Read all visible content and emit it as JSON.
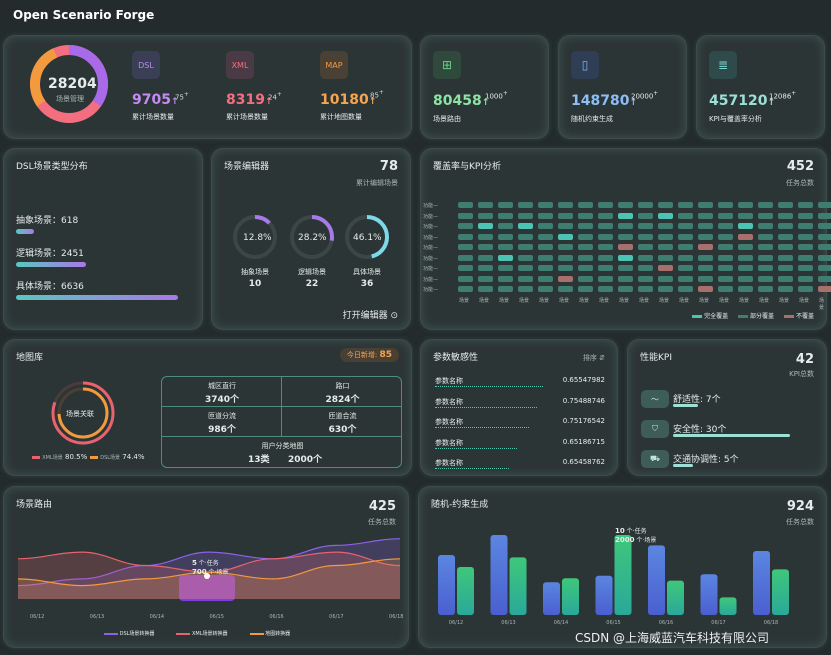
{
  "app": {
    "title": "Open Scenario Forge"
  },
  "scene_mgmt": {
    "total": "28204",
    "total_label": "场景管理",
    "items": [
      {
        "icon": "DSL",
        "value": "9705",
        "delta": "75",
        "label": "累计场景数量",
        "color": "#c48cf2"
      },
      {
        "icon": "XML",
        "value": "8319",
        "delta": "24",
        "label": "累计场景数量",
        "color": "#f36e7e"
      },
      {
        "icon": "MAP",
        "value": "10180",
        "delta": "85",
        "label": "累计地图数量",
        "color": "#f3a550"
      }
    ],
    "arrow": "↑",
    "sup": "+"
  },
  "top_stats": [
    {
      "value": "80458",
      "delta": "1000",
      "label": "场景路由",
      "color": "#8de3a4"
    },
    {
      "value": "148780",
      "delta": "20000",
      "label": "随机约束生成",
      "color": "#8ebef6"
    },
    {
      "value": "457120",
      "delta": "12086",
      "label": "KPI与覆盖率分析",
      "color": "#9de0d8"
    }
  ],
  "dsl_types": {
    "title": "DSL场景类型分布",
    "items": [
      {
        "label": "抽象场景：618",
        "frac": 0.09
      },
      {
        "label": "逻辑场景：2451",
        "frac": 0.37
      },
      {
        "label": "具体场景：6636",
        "frac": 1.0
      }
    ]
  },
  "editor": {
    "title": "场景编辑器",
    "count": "78",
    "count_label": "累计编辑场景",
    "open": "打开编辑器",
    "gauges": [
      {
        "pct": "12.8%",
        "frac": 0.128,
        "name": "抽象场景",
        "num": "10"
      },
      {
        "pct": "28.2%",
        "frac": 0.282,
        "name": "逻辑场景",
        "num": "22"
      },
      {
        "pct": "46.1%",
        "frac": 0.461,
        "name": "具体场景",
        "num": "36"
      }
    ]
  },
  "coverage": {
    "title": "覆盖率与KPI分析",
    "count": "452",
    "count_label": "任务总数",
    "row_label": "功能",
    "col_label": "场景",
    "legend": [
      {
        "label": "完全覆盖",
        "color": "#4cc4b4"
      },
      {
        "label": "部分覆盖",
        "color": "#3f7d70"
      },
      {
        "label": "不覆盖",
        "color": "#a8706c"
      }
    ]
  },
  "map_lib": {
    "title": "地图库",
    "new_label": "今日新增:",
    "new_value": "85",
    "ring_label": "场景关联",
    "ring_a": {
      "label": "XML场景",
      "pct": "80.5%",
      "frac": 0.805
    },
    "ring_b": {
      "label": "DSL场景",
      "pct": "74.4%",
      "frac": 0.744
    },
    "cells": [
      {
        "label": "城区直行",
        "value": "3740个"
      },
      {
        "label": "路口",
        "value": "2824个"
      },
      {
        "label": "匝道分流",
        "value": "986个"
      },
      {
        "label": "匝道合流",
        "value": "630个"
      }
    ],
    "footer_title": "用户分类地图",
    "footer_a": "13类",
    "footer_b": "2000个"
  },
  "params": {
    "title": "参数敏感性",
    "sort": "排序 ⇵",
    "rows": [
      {
        "name": "参数名称",
        "value": "0.65547982"
      },
      {
        "name": "参数名称",
        "value": "0.75488746"
      },
      {
        "name": "参数名称",
        "value": "0.75176542"
      },
      {
        "name": "参数名称",
        "value": "0.65186715"
      },
      {
        "name": "参数名称",
        "value": "0.65458762"
      }
    ]
  },
  "kpi": {
    "title": "性能KPI",
    "count": "42",
    "count_label": "KPI总数",
    "items": [
      {
        "label": "舒适性:",
        "value": "7个",
        "frac": 0.17
      },
      {
        "label": "安全性:",
        "value": "30个",
        "frac": 0.71
      },
      {
        "label": "交通协调性:",
        "value": "5个",
        "frac": 0.12
      }
    ]
  },
  "routing": {
    "title": "场景路由",
    "count": "425",
    "count_label": "任务总数",
    "tip_a": "5",
    "tip_a_unit": "个·任务",
    "tip_b": "700",
    "tip_b_unit": "个·场景",
    "dates": [
      "06/12",
      "06/13",
      "06/14",
      "06/15",
      "06/16",
      "06/17",
      "06/18"
    ],
    "legend": [
      {
        "label": "DSL场景转换器",
        "color": "#8b62e8"
      },
      {
        "label": "XML场景转换器",
        "color": "#e8636e"
      },
      {
        "label": "地图转换器",
        "color": "#f39a3e"
      }
    ]
  },
  "random": {
    "title": "随机-约束生成",
    "count": "924",
    "count_label": "任务总数",
    "tip_a": "10",
    "tip_a_unit": "个·任务",
    "tip_b": "2000",
    "tip_b_unit": "个·场景",
    "dates": [
      "06/12",
      "06/13",
      "06/14",
      "06/15",
      "06/16",
      "06/17",
      "06/18"
    ]
  },
  "chart_data": [
    {
      "type": "area",
      "title": "场景路由",
      "categories": [
        "06/12",
        "06/13",
        "06/14",
        "06/15",
        "06/16",
        "06/17",
        "06/18"
      ],
      "series": [
        {
          "name": "DSL场景转换器",
          "values": [
            2,
            3,
            5,
            7,
            6,
            8,
            9
          ]
        },
        {
          "name": "XML场景转换器",
          "values": [
            6,
            7,
            5,
            4,
            6,
            7,
            5
          ]
        },
        {
          "name": "地图转换器",
          "values": [
            3,
            2,
            3,
            4,
            3,
            5,
            6
          ]
        }
      ]
    },
    {
      "type": "bar",
      "title": "随机-约束生成",
      "categories": [
        "06/12",
        "06/13",
        "06/14",
        "06/15",
        "06/16",
        "06/17",
        "06/18"
      ],
      "series": [
        {
          "values": [
            7.5,
            10,
            4.1,
            4.9,
            8.7,
            5.1,
            8
          ]
        },
        {
          "values": [
            6,
            7.2,
            4.6,
            10,
            4.3,
            2.2,
            5.7
          ]
        }
      ]
    }
  ],
  "watermark": "CSDN @上海威蓝汽车科技有限公司"
}
